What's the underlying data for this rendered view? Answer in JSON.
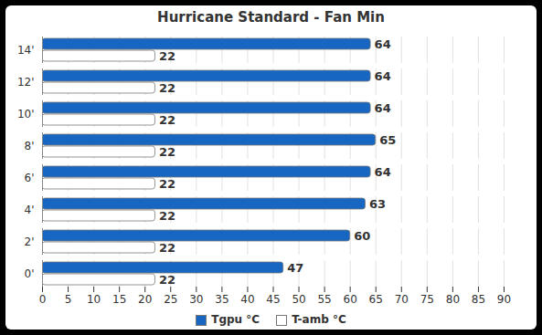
{
  "chart_data": {
    "type": "bar",
    "title": "Hurricane Standard - Fan Min",
    "orientation": "horizontal",
    "categories": [
      "0'",
      "2'",
      "4'",
      "6'",
      "8'",
      "10'",
      "12'",
      "14'"
    ],
    "series": [
      {
        "name": "Tgpu °C",
        "color": "#1767c2",
        "values": [
          47,
          60,
          63,
          64,
          65,
          64,
          64,
          64
        ]
      },
      {
        "name": "T-amb °C",
        "color": "#ffffff",
        "values": [
          22,
          22,
          22,
          22,
          22,
          22,
          22,
          22
        ]
      }
    ],
    "xlim": [
      0,
      90
    ],
    "xticks": [
      0,
      5,
      10,
      15,
      20,
      25,
      30,
      35,
      40,
      45,
      50,
      55,
      60,
      65,
      70,
      75,
      80,
      85,
      90
    ],
    "grid": true,
    "data_labels": true,
    "legend": "bottom"
  }
}
